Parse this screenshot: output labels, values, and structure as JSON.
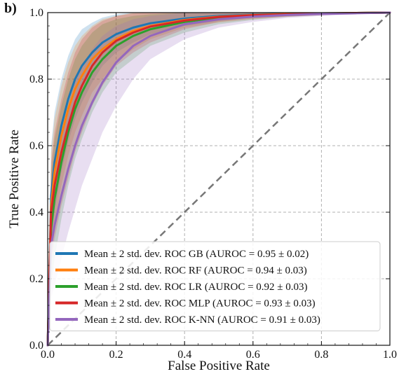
{
  "panel_label": "b)",
  "chart_data": {
    "type": "line",
    "title": "",
    "xlabel": "False Positive Rate",
    "ylabel": "True Positive Rate",
    "xlim": [
      0,
      1
    ],
    "ylim": [
      0,
      1
    ],
    "xticks": [
      "0.0",
      "0.2",
      "0.4",
      "0.6",
      "0.8",
      "1.0"
    ],
    "yticks": [
      "0.0",
      "0.2",
      "0.4",
      "0.6",
      "0.8",
      "1.0"
    ],
    "grid": true,
    "legend_position": "bottom-right",
    "x": [
      0,
      0.01,
      0.02,
      0.04,
      0.06,
      0.08,
      0.1,
      0.13,
      0.16,
      0.2,
      0.25,
      0.3,
      0.4,
      0.5,
      0.6,
      0.7,
      0.8,
      0.9,
      1.0
    ],
    "series": [
      {
        "name": "Mean ± 2 std. dev. ROC GB (AUROC = 0.95 ± 0.02)",
        "color": "#1f77b4",
        "values": [
          0,
          0.45,
          0.55,
          0.66,
          0.74,
          0.8,
          0.84,
          0.88,
          0.91,
          0.935,
          0.955,
          0.968,
          0.982,
          0.99,
          0.994,
          0.997,
          0.998,
          0.999,
          1.0
        ],
        "upper": [
          0,
          0.6,
          0.7,
          0.8,
          0.87,
          0.92,
          0.95,
          0.97,
          0.985,
          0.995,
          1,
          1,
          1,
          1,
          1,
          1,
          1,
          1,
          1
        ],
        "lower": [
          0,
          0.3,
          0.4,
          0.52,
          0.61,
          0.68,
          0.73,
          0.79,
          0.84,
          0.88,
          0.91,
          0.935,
          0.96,
          0.975,
          0.985,
          0.99,
          0.994,
          0.997,
          1.0
        ]
      },
      {
        "name": "Mean ± 2 std. dev. ROC RF (AUROC = 0.94 ± 0.03)",
        "color": "#ff7f0e",
        "values": [
          0,
          0.42,
          0.52,
          0.63,
          0.71,
          0.77,
          0.81,
          0.86,
          0.89,
          0.92,
          0.945,
          0.96,
          0.978,
          0.988,
          0.993,
          0.996,
          0.998,
          0.999,
          1.0
        ],
        "upper": [
          0,
          0.58,
          0.68,
          0.78,
          0.85,
          0.9,
          0.93,
          0.96,
          0.98,
          0.99,
          1,
          1,
          1,
          1,
          1,
          1,
          1,
          1,
          1
        ],
        "lower": [
          0,
          0.26,
          0.36,
          0.48,
          0.57,
          0.64,
          0.69,
          0.76,
          0.8,
          0.85,
          0.89,
          0.92,
          0.955,
          0.97,
          0.98,
          0.988,
          0.993,
          0.997,
          1.0
        ]
      },
      {
        "name": "Mean ± 2 std. dev. ROC LR (AUROC = 0.92 ± 0.03)",
        "color": "#2ca02c",
        "values": [
          0,
          0.35,
          0.44,
          0.55,
          0.64,
          0.71,
          0.76,
          0.82,
          0.86,
          0.9,
          0.93,
          0.95,
          0.972,
          0.985,
          0.991,
          0.995,
          0.997,
          0.999,
          1.0
        ],
        "upper": [
          0,
          0.52,
          0.62,
          0.72,
          0.8,
          0.86,
          0.9,
          0.94,
          0.965,
          0.98,
          0.99,
          0.995,
          1,
          1,
          1,
          1,
          1,
          1,
          1
        ],
        "lower": [
          0,
          0.18,
          0.26,
          0.38,
          0.48,
          0.56,
          0.62,
          0.7,
          0.76,
          0.82,
          0.86,
          0.9,
          0.94,
          0.965,
          0.978,
          0.987,
          0.992,
          0.997,
          1.0
        ]
      },
      {
        "name": "Mean ± 2 std. dev. ROC MLP (AUROC = 0.93 ± 0.03)",
        "color": "#d62728",
        "values": [
          0,
          0.4,
          0.48,
          0.58,
          0.66,
          0.73,
          0.78,
          0.84,
          0.88,
          0.915,
          0.94,
          0.958,
          0.976,
          0.987,
          0.992,
          0.995,
          0.997,
          0.999,
          1.0
        ],
        "upper": [
          0,
          0.55,
          0.64,
          0.74,
          0.82,
          0.88,
          0.92,
          0.955,
          0.975,
          0.99,
          0.998,
          1,
          1,
          1,
          1,
          1,
          1,
          1,
          1
        ],
        "lower": [
          0,
          0.24,
          0.32,
          0.42,
          0.5,
          0.58,
          0.64,
          0.72,
          0.78,
          0.84,
          0.88,
          0.91,
          0.95,
          0.972,
          0.982,
          0.988,
          0.992,
          0.997,
          1.0
        ]
      },
      {
        "name": "Mean ± 2 std. dev. ROC K-NN (AUROC = 0.91 ± 0.03)",
        "color": "#9467bd",
        "values": [
          0,
          0.3,
          0.36,
          0.45,
          0.53,
          0.6,
          0.66,
          0.73,
          0.79,
          0.85,
          0.9,
          0.93,
          0.965,
          0.98,
          0.988,
          0.993,
          0.996,
          0.998,
          1.0
        ],
        "upper": [
          0,
          0.46,
          0.54,
          0.64,
          0.72,
          0.79,
          0.84,
          0.89,
          0.93,
          0.96,
          0.98,
          0.99,
          1,
          1,
          1,
          1,
          1,
          1,
          1
        ],
        "lower": [
          0,
          0.14,
          0.18,
          0.26,
          0.34,
          0.41,
          0.48,
          0.56,
          0.64,
          0.72,
          0.8,
          0.86,
          0.92,
          0.955,
          0.972,
          0.984,
          0.99,
          0.995,
          1.0
        ]
      }
    ],
    "reference_line": {
      "x": [
        0,
        1
      ],
      "y": [
        0,
        1
      ],
      "color": "#777777",
      "style": "dashed"
    }
  }
}
